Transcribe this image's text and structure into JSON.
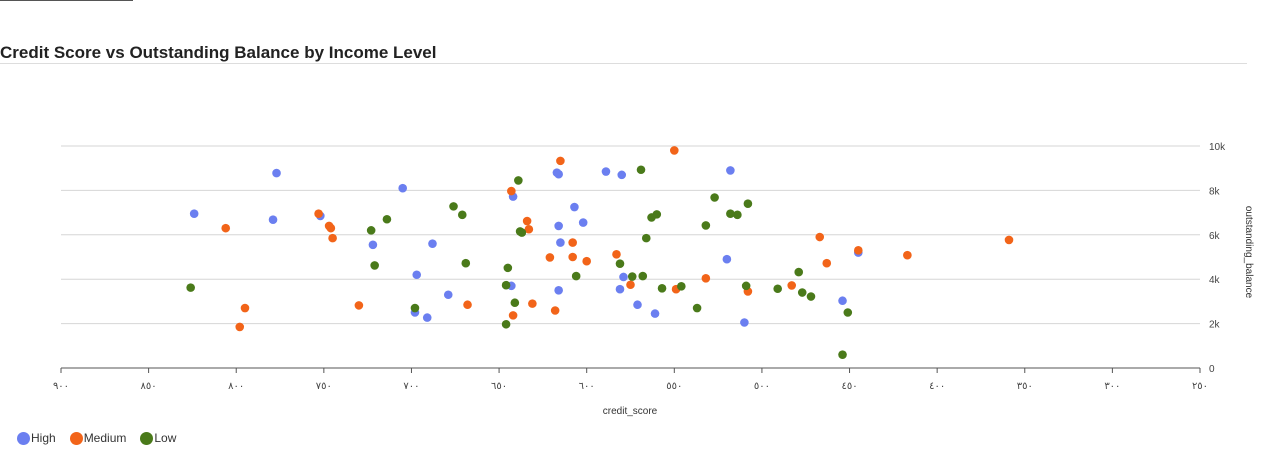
{
  "chart_data": {
    "type": "scatter",
    "title": "Credit Score vs Outstanding Balance by Income Level",
    "xlabel": "credit_score",
    "ylabel": "outstanding_balance",
    "xlim": [
      900,
      250
    ],
    "ylim": [
      0,
      10000
    ],
    "x_reversed": true,
    "x_ticks": [
      900,
      850,
      800,
      750,
      700,
      650,
      600,
      550,
      500,
      450,
      400,
      350,
      300,
      250
    ],
    "x_tick_labels": [
      "٩٠٠",
      "٨٥٠",
      "٨٠٠",
      "٧٥٠",
      "٧٠٠",
      "٦٥٠",
      "٦٠٠",
      "٥٥٠",
      "٥٠٠",
      "٤٥٠",
      "٤٠٠",
      "٣٥٠",
      "٣٠٠",
      "٢٥٠"
    ],
    "y_ticks": [
      0,
      2000,
      4000,
      6000,
      8000,
      10000
    ],
    "y_tick_labels": [
      "0",
      "2k",
      "4k",
      "6k",
      "8k",
      "10k"
    ],
    "y_axis_position": "right",
    "grid": "horizontal",
    "legend_position": "bottom-left",
    "series": [
      {
        "name": "High",
        "color": "#6b7ff0",
        "points": [
          [
            824,
            6950
          ],
          [
            777,
            8780
          ],
          [
            779,
            6680
          ],
          [
            752,
            6850
          ],
          [
            722,
            5550
          ],
          [
            705,
            8100
          ],
          [
            698,
            2500
          ],
          [
            697,
            4200
          ],
          [
            691,
            2270
          ],
          [
            688,
            5600
          ],
          [
            679,
            3300
          ],
          [
            642,
            7720
          ],
          [
            643,
            3700
          ],
          [
            616,
            8730
          ],
          [
            617,
            8800
          ],
          [
            616,
            6400
          ],
          [
            615,
            5650
          ],
          [
            616,
            3500
          ],
          [
            607,
            7250
          ],
          [
            602,
            6550
          ],
          [
            589,
            8850
          ],
          [
            580,
            8700
          ],
          [
            579,
            4100
          ],
          [
            581,
            3550
          ],
          [
            571,
            2850
          ],
          [
            561,
            2450
          ],
          [
            520,
            4900
          ],
          [
            518,
            8900
          ],
          [
            510,
            2050
          ],
          [
            454,
            3030
          ],
          [
            445,
            5200
          ]
        ]
      },
      {
        "name": "Medium",
        "color": "#f26419",
        "points": [
          [
            806,
            6300
          ],
          [
            798,
            1850
          ],
          [
            795,
            2700
          ],
          [
            753,
            6950
          ],
          [
            747,
            6400
          ],
          [
            746,
            6300
          ],
          [
            745,
            5850
          ],
          [
            730,
            2820
          ],
          [
            668,
            2850
          ],
          [
            643,
            7970
          ],
          [
            642,
            2370
          ],
          [
            634,
            6620
          ],
          [
            633,
            6250
          ],
          [
            631,
            2900
          ],
          [
            621,
            4980
          ],
          [
            618,
            2590
          ],
          [
            615,
            9330
          ],
          [
            608,
            5000
          ],
          [
            608,
            5650
          ],
          [
            600,
            4810
          ],
          [
            583,
            5120
          ],
          [
            575,
            3750
          ],
          [
            550,
            9800
          ],
          [
            549,
            3550
          ],
          [
            532,
            4040
          ],
          [
            508,
            3450
          ],
          [
            483,
            3720
          ],
          [
            467,
            5900
          ],
          [
            463,
            4720
          ],
          [
            445,
            5300
          ],
          [
            417,
            5080
          ],
          [
            359,
            5770
          ]
        ]
      },
      {
        "name": "Low",
        "color": "#4a7a1a",
        "points": [
          [
            826,
            3620
          ],
          [
            723,
            6200
          ],
          [
            721,
            4620
          ],
          [
            714,
            6700
          ],
          [
            698,
            2700
          ],
          [
            676,
            7280
          ],
          [
            671,
            6900
          ],
          [
            669,
            4720
          ],
          [
            646,
            1970
          ],
          [
            646,
            3730
          ],
          [
            645,
            4510
          ],
          [
            641,
            2940
          ],
          [
            639,
            8450
          ],
          [
            638,
            6150
          ],
          [
            637,
            6100
          ],
          [
            606,
            4140
          ],
          [
            581,
            4700
          ],
          [
            574,
            4120
          ],
          [
            569,
            8930
          ],
          [
            568,
            4140
          ],
          [
            566,
            5850
          ],
          [
            563,
            6780
          ],
          [
            560,
            6920
          ],
          [
            557,
            3590
          ],
          [
            546,
            3680
          ],
          [
            537,
            2700
          ],
          [
            532,
            6420
          ],
          [
            527,
            7680
          ],
          [
            518,
            6950
          ],
          [
            514,
            6900
          ],
          [
            509,
            3700
          ],
          [
            508,
            7400
          ],
          [
            491,
            3570
          ],
          [
            479,
            4320
          ],
          [
            477,
            3400
          ],
          [
            472,
            3220
          ],
          [
            451,
            2500
          ],
          [
            454,
            600
          ]
        ]
      }
    ]
  }
}
